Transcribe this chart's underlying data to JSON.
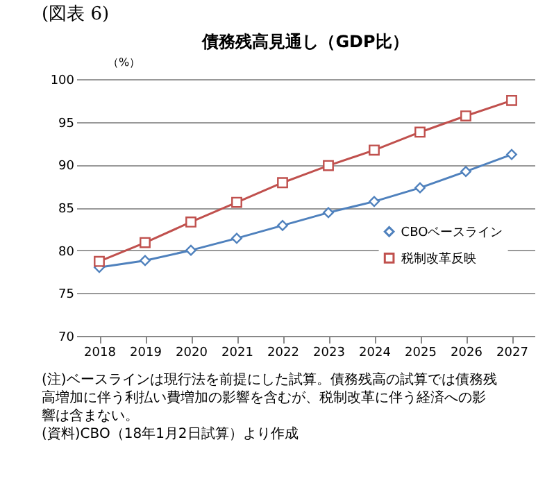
{
  "chart_data": {
    "type": "line",
    "title": "債務残高見通し（GDP比）",
    "ylabel": "（%）",
    "categories": [
      "2018",
      "2019",
      "2020",
      "2021",
      "2022",
      "2023",
      "2024",
      "2025",
      "2026",
      "2027"
    ],
    "series": [
      {
        "name": "CBOベースライン",
        "color": "#4f81bd",
        "marker": "diamond",
        "values": [
          78.0,
          78.8,
          80.0,
          81.4,
          82.9,
          84.4,
          85.7,
          87.3,
          89.2,
          91.2
        ]
      },
      {
        "name": "税制改革反映",
        "color": "#c0504d",
        "marker": "square",
        "values": [
          78.7,
          80.9,
          83.3,
          85.6,
          87.9,
          89.9,
          91.7,
          93.8,
          95.7,
          97.5
        ]
      }
    ],
    "ylim": [
      70,
      100
    ],
    "yticks": [
      70,
      75,
      80,
      85,
      90,
      95,
      100
    ],
    "grid": "y",
    "legend": "right",
    "line_style": "solid",
    "annotations": [
      "(図表 6)",
      "(注)ベースラインは現行法を前提にした試算。債務残高の試算では債務残高増加に伴う利払い費増加の影響を含むが、税制改革に伴う経済への影響は含まない。",
      "(資料)CBO（18年1月2日試算）より作成"
    ]
  }
}
